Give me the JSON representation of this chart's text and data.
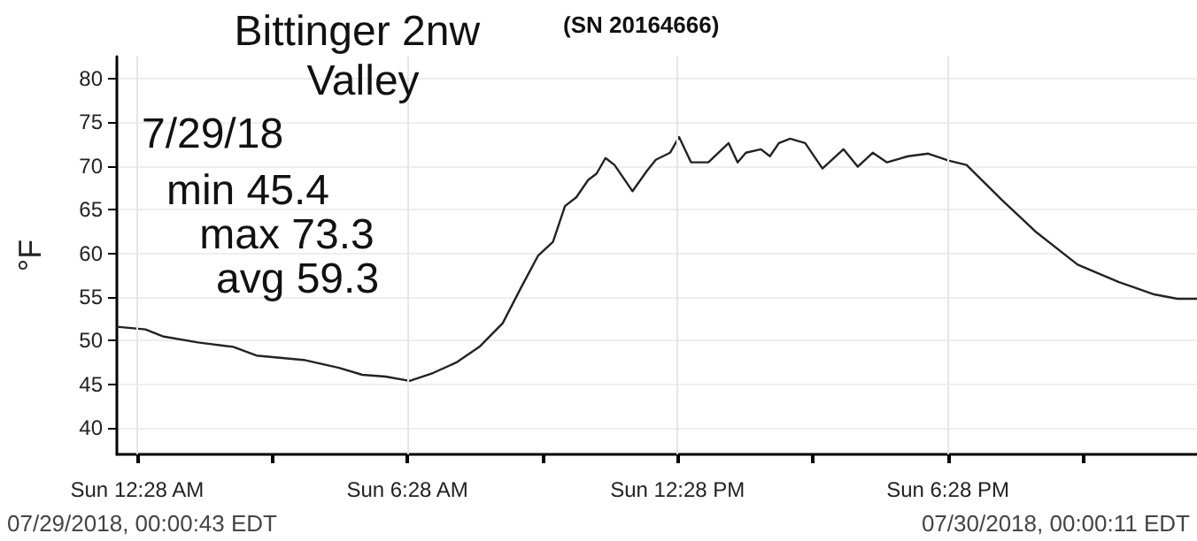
{
  "chart_data": {
    "type": "line",
    "title": "Bittinger 2nw Valley",
    "subtitle": "(SN 20164666)",
    "ylabel": "°F",
    "annotations": [
      "7/29/18",
      "min 45.4",
      "max 73.3",
      "avg 59.3",
      "07/29/2018, 00:00:43 EDT",
      "07/30/2018, 00:00:11 EDT"
    ],
    "x": [
      "2018-07-29T00:01",
      "2018-07-29T00:39",
      "2018-07-29T01:02",
      "2018-07-29T01:49",
      "2018-07-29T02:36",
      "2018-07-29T03:07",
      "2018-07-29T04:10",
      "2018-07-29T04:57",
      "2018-07-29T05:28",
      "2018-07-29T05:59",
      "2018-07-29T06:31",
      "2018-07-29T07:02",
      "2018-07-29T07:33",
      "2018-07-29T08:04",
      "2018-07-29T08:35",
      "2018-07-29T08:59",
      "2018-07-29T09:22",
      "2018-07-29T09:42",
      "2018-07-29T09:58",
      "2018-07-29T10:13",
      "2018-07-29T10:29",
      "2018-07-29T10:40",
      "2018-07-29T10:52",
      "2018-07-29T11:04",
      "2018-07-29T11:28",
      "2018-07-29T11:47",
      "2018-07-29T11:59",
      "2018-07-29T12:18",
      "2018-07-29T12:30",
      "2018-07-29T12:46",
      "2018-07-29T13:09",
      "2018-07-29T13:36",
      "2018-07-29T13:48",
      "2018-07-29T13:59",
      "2018-07-29T14:19",
      "2018-07-29T14:31",
      "2018-07-29T14:43",
      "2018-07-29T14:58",
      "2018-07-29T15:18",
      "2018-07-29T15:41",
      "2018-07-29T16:09",
      "2018-07-29T16:28",
      "2018-07-29T16:48",
      "2018-07-29T17:07",
      "2018-07-29T17:35",
      "2018-07-29T18:02",
      "2018-07-29T18:29",
      "2018-07-29T18:53",
      "2018-07-29T19:40",
      "2018-07-29T20:26",
      "2018-07-29T21:21",
      "2018-07-29T22:16",
      "2018-07-29T23:03",
      "2018-07-29T23:34",
      "2018-07-30T00:00"
    ],
    "series": [
      {
        "color": "#222222",
        "values": [
          51.6,
          51.3,
          50.5,
          49.8,
          49.3,
          48.3,
          47.8,
          46.9,
          46.1,
          45.9,
          45.4,
          46.3,
          47.5,
          49.3,
          52.0,
          56.0,
          59.7,
          61.3,
          65.4,
          66.4,
          68.4,
          69.1,
          70.9,
          70.1,
          67.1,
          69.4,
          70.7,
          71.5,
          73.3,
          70.4,
          70.4,
          72.6,
          70.4,
          71.5,
          71.9,
          71.1,
          72.6,
          73.1,
          72.6,
          69.7,
          71.9,
          69.9,
          71.5,
          70.4,
          71.1,
          71.4,
          70.6,
          70.1,
          66.1,
          62.4,
          58.7,
          56.7,
          55.3,
          54.8,
          54.8
        ]
      }
    ],
    "xlim": [
      "2018-07-29T00:01",
      "2018-07-30T00:00"
    ],
    "ylim": [
      37,
      82.5
    ],
    "xticks": [
      {
        "value": "2018-07-29T00:28",
        "label": "Sun 12:28 AM"
      },
      {
        "value": "2018-07-29T03:28",
        "label": null
      },
      {
        "value": "2018-07-29T06:28",
        "label": "Sun 6:28 AM"
      },
      {
        "value": "2018-07-29T09:28",
        "label": null
      },
      {
        "value": "2018-07-29T12:28",
        "label": "Sun 12:28 PM"
      },
      {
        "value": "2018-07-29T15:28",
        "label": null
      },
      {
        "value": "2018-07-29T18:28",
        "label": "Sun 6:28 PM"
      },
      {
        "value": "2018-07-29T21:28",
        "label": null
      }
    ],
    "yticks": [
      40,
      45,
      50,
      55,
      60,
      65,
      70,
      75,
      80
    ],
    "grid": true,
    "marker": "none",
    "line_style": "solid"
  }
}
